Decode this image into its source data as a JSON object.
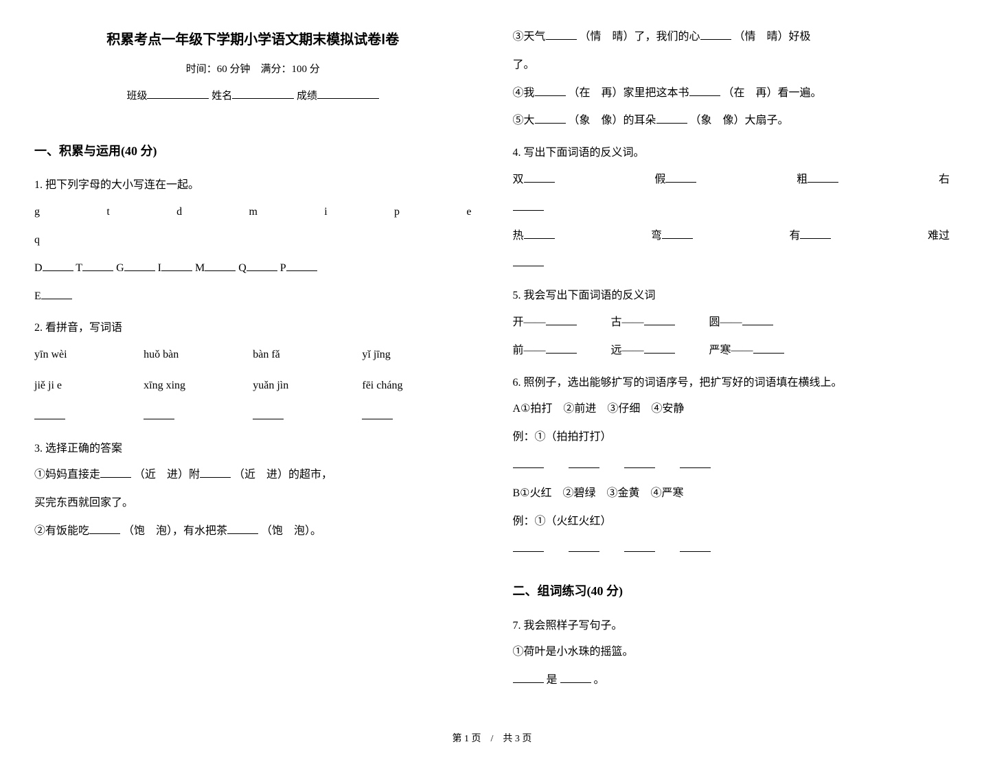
{
  "header": {
    "title": "积累考点一年级下学期小学语文期末模拟试卷Ⅰ卷",
    "subtitle": "时间：60 分钟　满分：100 分",
    "class_label": "班级",
    "name_label": "姓名",
    "score_label": "成绩"
  },
  "section1": {
    "heading": "一、积累与运用(40 分)"
  },
  "q1": {
    "prompt": "1. 把下列字母的大小写连在一起。",
    "lower": [
      "g",
      "t",
      "d",
      "m",
      "i",
      "p",
      "e",
      "q"
    ],
    "upper": [
      "D",
      "T",
      "G",
      "I",
      "M",
      "Q",
      "P",
      "E"
    ]
  },
  "q2": {
    "prompt": "2. 看拼音，写词语",
    "row1": [
      "yīn wèi",
      "huǒ bàn",
      "bàn fǎ",
      "yǐ jīng"
    ],
    "row2": [
      "jiě ji e",
      "xīng xing",
      "yuǎn jìn",
      "fēi cháng"
    ]
  },
  "q3": {
    "prompt": "3. 选择正确的答案",
    "item1_a": "①妈妈直接走",
    "item1_b": "（近　进）附",
    "item1_c": "（近　进）的超市，",
    "item1_d": "买完东西就回家了。",
    "item2_a": "②有饭能吃",
    "item2_b": "（饱　泡），有水把茶",
    "item2_c": "（饱　泡）。",
    "item3_a": "③天气",
    "item3_b": "（情　晴）了，我们的心",
    "item3_c": "（情　晴）好极",
    "item3_d": "了。",
    "item4_a": "④我",
    "item4_b": "（在　再）家里把这本书",
    "item4_c": "（在　再）看一遍。",
    "item5_a": "⑤大",
    "item5_b": "（象　像）的耳朵",
    "item5_c": "（象　像）大扇子。"
  },
  "q4": {
    "prompt": "4. 写出下面词语的反义词。",
    "row1": [
      "双",
      "假",
      "粗",
      "右"
    ],
    "row2": [
      "热",
      "弯",
      "有",
      "难过"
    ]
  },
  "q5": {
    "prompt": "5. 我会写出下面词语的反义词",
    "row1": [
      "开——",
      "古——",
      "圆——"
    ],
    "row2": [
      "前——",
      "远——",
      "严寒——"
    ]
  },
  "q6": {
    "prompt": "6. 照例子，选出能够扩写的词语序号，把扩写好的词语填在横线上。",
    "groupA": "A①拍打　②前进　③仔细　④安静",
    "exampleA": "例：①（拍拍打打）",
    "groupB": "B①火红　②碧绿　③金黄　④严寒",
    "exampleB": "例：①（火红火红）"
  },
  "section2": {
    "heading": "二、组词练习(40 分)"
  },
  "q7": {
    "prompt": "7. 我会照样子写句子。",
    "item1": "①荷叶是小水珠的摇篮。",
    "item1_blank_a": "是",
    "item1_blank_b": "。"
  },
  "footer": {
    "text": "第 1 页　/　共 3 页"
  }
}
